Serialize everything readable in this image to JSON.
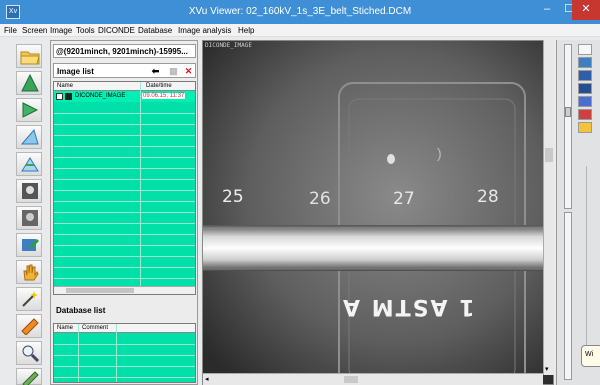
{
  "window": {
    "app_icon": "Xv",
    "title": "XVu Viewer: 02_160kV_1s_3E_belt_Stiched.DCM",
    "minimize_glyph": "–",
    "maximize_glyph": "☐",
    "close_glyph": "✕"
  },
  "menu": [
    "File",
    "Screen",
    "Image",
    "Tools",
    "DICONDE",
    "Database",
    "Image analysis",
    "Help"
  ],
  "left_tools": [
    "folder-open-icon",
    "trapezoid-icon",
    "play-icon",
    "triangle-blue-icon",
    "triangle-scale-icon",
    "portrait-icon",
    "portrait-edit-icon",
    "export-screen-icon",
    "hand-pan-icon",
    "magic-wand-icon",
    "ruler-icon",
    "magnifier-icon",
    "pencil-icon"
  ],
  "panel": {
    "path": "@(9201minch, 9201minch)-15995...",
    "image_list": {
      "title": "Image list",
      "back_glyph": "⬅",
      "grid_glyph": "▦",
      "delete_glyph": "✕",
      "columns": [
        "Name",
        "Date/time"
      ],
      "rows": [
        {
          "name": "DICONDE_IMAGE",
          "date": "09.06.15, 11:37"
        }
      ]
    },
    "database_list": {
      "title": "Database list",
      "columns": [
        "Name",
        "Comment"
      ]
    }
  },
  "viewer": {
    "label": "DICONDE_IMAGE",
    "ruler_numbers": [
      "25",
      "26",
      "27",
      "28"
    ],
    "stamp_text": "1 ASTM A",
    "small_mark": ")"
  },
  "tooltip": "Wi",
  "colors": {
    "titlebar": "#3f8fd6",
    "list_bg": "#00e0a8",
    "close": "#c7372f"
  }
}
